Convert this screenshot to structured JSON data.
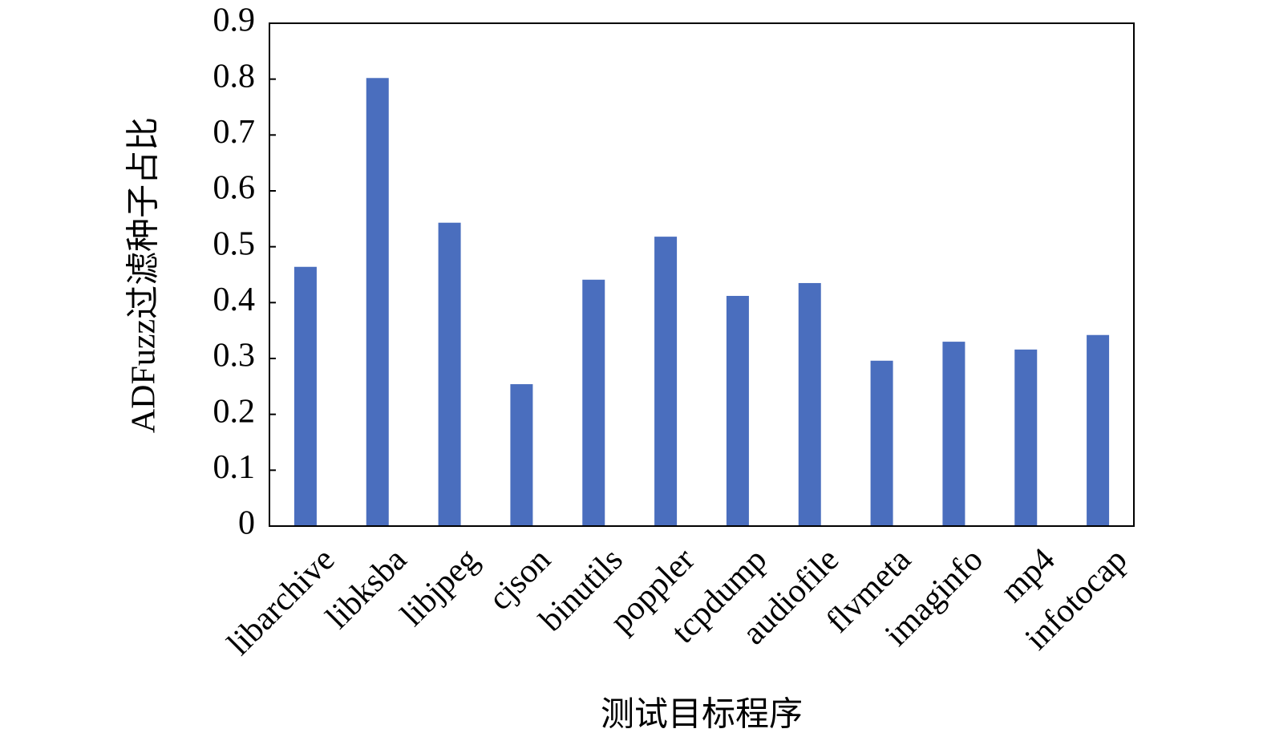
{
  "chart_data": {
    "type": "bar",
    "xlabel": "测试目标程序",
    "ylabel": "ADFuzz过滤种子占比",
    "categories": [
      "libarchive",
      "libksba",
      "libjpeg",
      "cjson",
      "binutils",
      "poppler",
      "tcpdump",
      "audiofile",
      "flvmeta",
      "imaginfo",
      "mp4",
      "infotocap"
    ],
    "values": [
      0.464,
      0.802,
      0.543,
      0.254,
      0.441,
      0.518,
      0.412,
      0.435,
      0.296,
      0.33,
      0.316,
      0.342
    ],
    "color": "#4a6ebe",
    "ylim": [
      0,
      0.9
    ],
    "yticks": [
      0,
      0.1,
      0.2,
      0.3,
      0.4,
      0.5,
      0.6,
      0.7,
      0.8,
      0.9
    ],
    "grid": false
  }
}
